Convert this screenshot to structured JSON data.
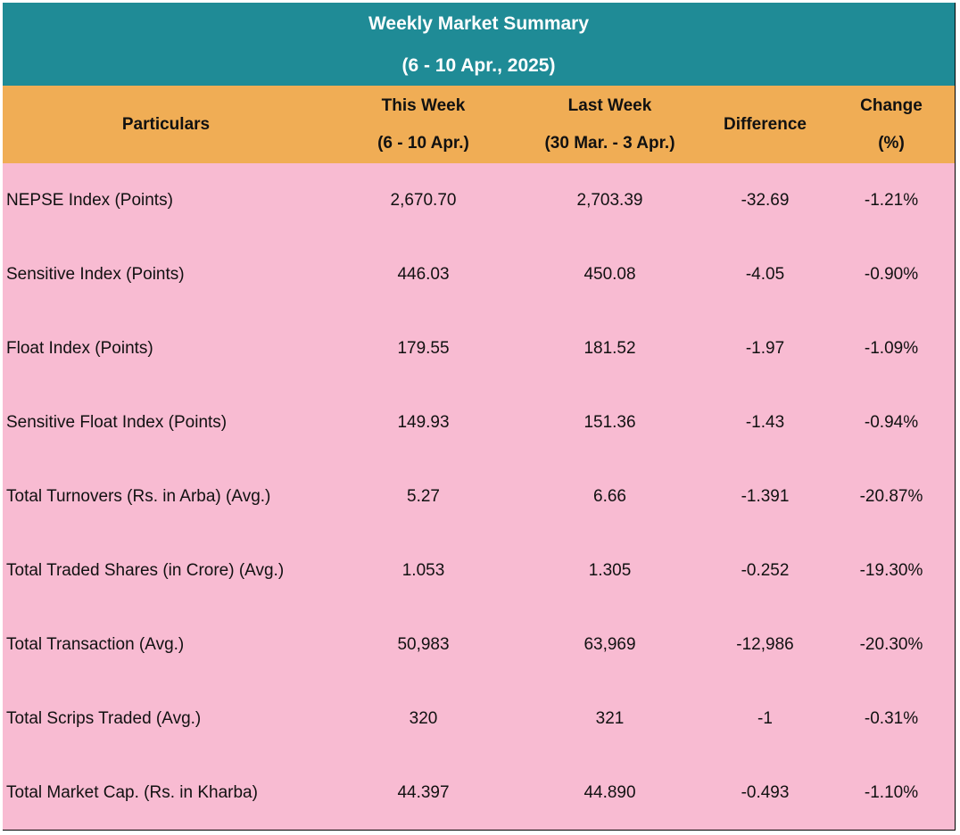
{
  "title": [
    "Weekly Market Summary",
    "(6 - 10 Apr., 2025)"
  ],
  "header": [
    [
      "Particulars"
    ],
    [
      "This Week",
      "(6 - 10 Apr.)"
    ],
    [
      "Last Week",
      "(30 Mar. - 3 Apr.)"
    ],
    [
      "Difference"
    ],
    [
      "Change",
      "(%)"
    ]
  ],
  "rows": [
    [
      "NEPSE Index (Points)",
      "2,670.70",
      "2,703.39",
      "-32.69",
      "-1.21%"
    ],
    [
      "Sensitive Index (Points)",
      "446.03",
      "450.08",
      "-4.05",
      "-0.90%"
    ],
    [
      "Float Index (Points)",
      "179.55",
      "181.52",
      "-1.97",
      "-1.09%"
    ],
    [
      "Sensitive Float Index (Points)",
      "149.93",
      "151.36",
      "-1.43",
      "-0.94%"
    ],
    [
      "Total Turnovers (Rs. in Arba) (Avg.)",
      "5.27",
      "6.66",
      "-1.391",
      "-20.87%"
    ],
    [
      "Total Traded Shares (in Crore) (Avg.)",
      "1.053",
      "1.305",
      "-0.252",
      "-19.30%"
    ],
    [
      "Total Transaction (Avg.)",
      "50,983",
      "63,969",
      "-12,986",
      "-20.30%"
    ],
    [
      "Total Scrips Traded (Avg.)",
      "320",
      "321",
      "-1",
      "-0.31%"
    ],
    [
      "Total Market Cap. (Rs. in Kharba)",
      "44.397",
      "44.890",
      "-0.493",
      "-1.10%"
    ]
  ]
}
